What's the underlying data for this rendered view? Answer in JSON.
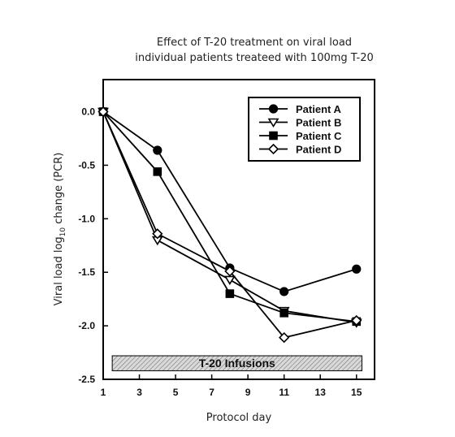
{
  "chart_data": {
    "type": "line",
    "title_lines": [
      "Effect of T-20 treatment on viral load",
      "individual patients treateed with 100mg T-20"
    ],
    "xlabel": "Protocol day",
    "ylabel_prefix": "Viral load log",
    "ylabel_sub": "10",
    "ylabel_suffix": " change (PCR)",
    "xlim": [
      1,
      16
    ],
    "ylim": [
      -2.5,
      0.3
    ],
    "xticks": [
      1,
      3,
      5,
      7,
      9,
      11,
      13,
      15
    ],
    "xtick_labels": [
      "1",
      "3",
      "5",
      "7",
      "9",
      "11",
      "13",
      "15"
    ],
    "yticks": [
      0.0,
      -0.5,
      -1.0,
      -1.5,
      -2.0,
      -2.5
    ],
    "ytick_labels": [
      "0.0",
      "-0.5",
      "-1.0",
      "-1.5",
      "-2.0",
      "-2.5"
    ],
    "series": [
      {
        "name": "Patient A",
        "marker": "filled-circle",
        "x": [
          1,
          4,
          8,
          11,
          15
        ],
        "y": [
          0.0,
          -0.36,
          -1.46,
          -1.68,
          -1.47
        ]
      },
      {
        "name": "Patient B",
        "marker": "open-triangle-down",
        "x": [
          1,
          4,
          8,
          11,
          15
        ],
        "y": [
          0.0,
          -1.2,
          -1.57,
          -1.86,
          -1.97
        ]
      },
      {
        "name": "Patient C",
        "marker": "filled-square",
        "x": [
          1,
          4,
          8,
          11,
          15
        ],
        "y": [
          0.0,
          -0.56,
          -1.7,
          -1.88,
          -1.96
        ]
      },
      {
        "name": "Patient D",
        "marker": "open-diamond",
        "x": [
          1,
          4,
          8,
          11,
          15
        ],
        "y": [
          0.0,
          -1.14,
          -1.49,
          -2.11,
          -1.95
        ]
      }
    ],
    "band": {
      "label": "T-20 Infusions",
      "x_start": 1.5,
      "x_end": 15.3,
      "y_top": -2.28,
      "y_bottom": -2.42
    },
    "legend_position": "top-right",
    "grid": false
  }
}
